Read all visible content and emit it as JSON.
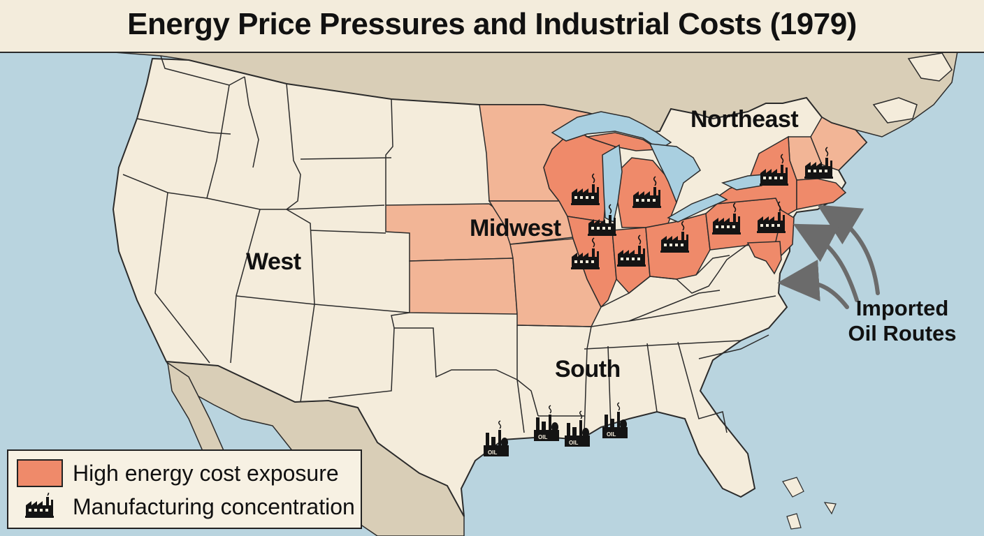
{
  "title": "Energy Price Pressures and Industrial Costs (1979)",
  "regions": {
    "west": "West",
    "midwest": "Midwest",
    "south": "South",
    "northeast": "Northeast"
  },
  "routes_label": [
    "Imported",
    "Oil Routes"
  ],
  "refinery_label": "OIL",
  "legend": {
    "high_cost_label": "High energy cost exposure",
    "manufacturing_label": "Manufacturing concentration"
  },
  "colors": {
    "ocean": "#b9d4df",
    "land_base": "#f4ecdb",
    "foreign_land": "#d9ceb7",
    "moderate_exposure": "#f2b596",
    "high_exposure": "#ef8a6a",
    "lakes": "#a9cfe0",
    "border": "#2b2b2b"
  },
  "icons": {
    "factory": "factory-icon",
    "refinery": "oil-refinery-icon",
    "arrow": "curved-arrow-icon"
  }
}
